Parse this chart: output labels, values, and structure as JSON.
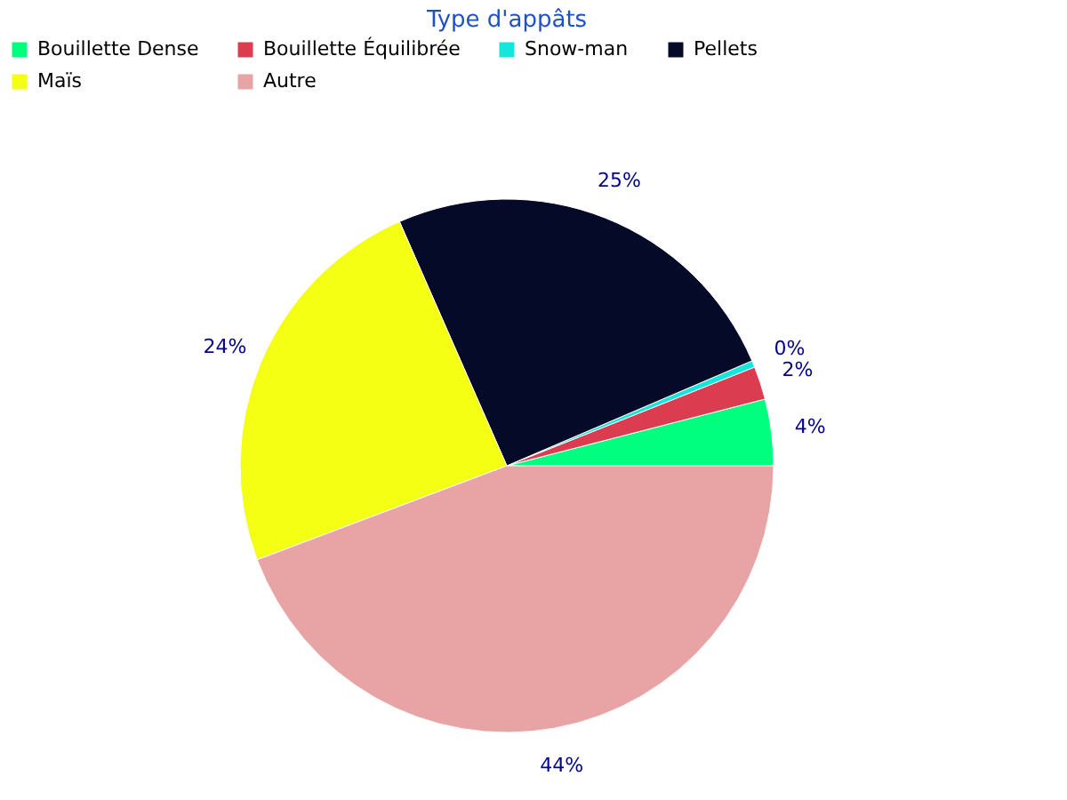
{
  "chart_data": {
    "type": "pie",
    "title": "Type d'appâts",
    "categories": [
      "Bouillette Dense",
      "Bouillette Équilibrée",
      "Snow-man",
      "Pellets",
      "Maïs",
      "Autre"
    ],
    "values": [
      4,
      2,
      0.4,
      25,
      24,
      44
    ],
    "value_labels": [
      "4%",
      "2%",
      "0%",
      "25%",
      "24%",
      "44%"
    ],
    "colors": [
      "#00ff7f",
      "#dc3c50",
      "#14e6dc",
      "#050a28",
      "#f5ff14",
      "#e8a4a4"
    ],
    "legend": "top"
  }
}
